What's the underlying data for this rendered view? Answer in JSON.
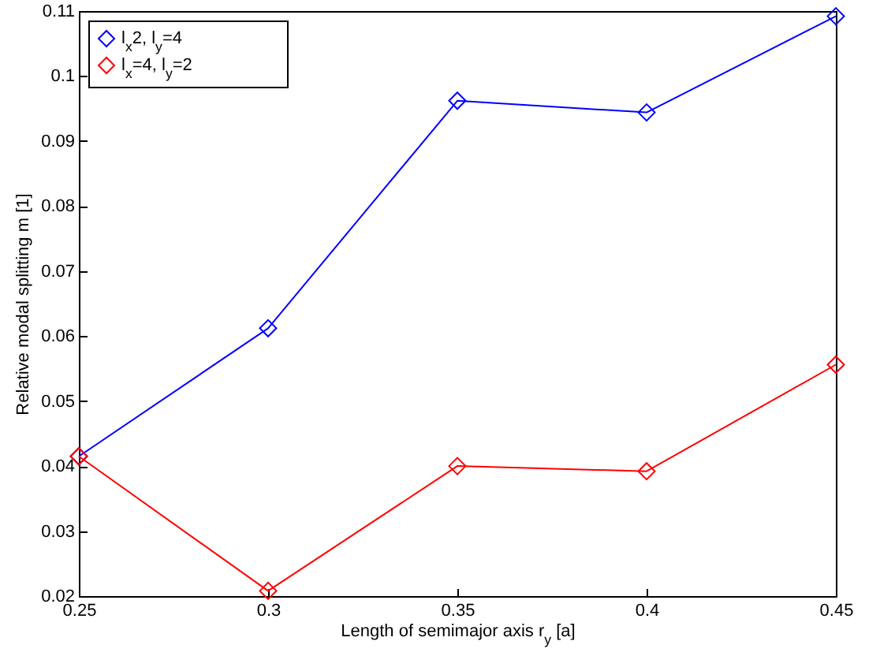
{
  "chart_data": {
    "type": "line",
    "xlabel": "Length of semimajor axis r$_{y}$ [a]",
    "ylabel": "Relative modal splitting m [1]",
    "x": [
      0.25,
      0.3,
      0.35,
      0.4,
      0.45
    ],
    "series": [
      {
        "name": "l$_{x}$2, l$_{y}$=4",
        "color": "#0000ff",
        "values": [
          0.0415,
          0.0612,
          0.0962,
          0.0944,
          0.1092
        ]
      },
      {
        "name": "l$_{x}$=4, l$_{y}$=2",
        "color": "#ff0000",
        "values": [
          0.0415,
          0.0208,
          0.04,
          0.0392,
          0.0556
        ]
      }
    ],
    "xlim": [
      0.25,
      0.45
    ],
    "xticks": [
      0.25,
      0.3,
      0.35,
      0.4,
      0.45
    ],
    "ylim": [
      0.02,
      0.11
    ],
    "yticks": [
      0.02,
      0.03,
      0.04,
      0.05,
      0.06,
      0.07,
      0.08,
      0.09,
      0.1,
      0.11
    ],
    "grid": false,
    "legend": "top left",
    "marker": "diamond",
    "line_style": "solid"
  }
}
